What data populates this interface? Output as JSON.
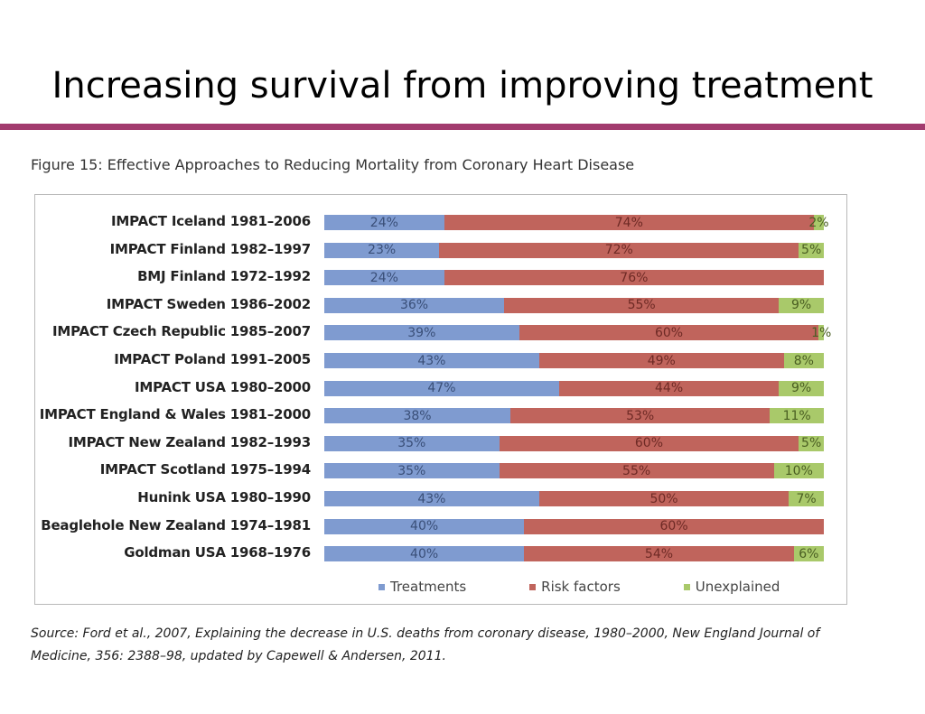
{
  "slide": {
    "title": "Increasing survival from improving treatment"
  },
  "colors": {
    "accent_rule": "#a23b6e",
    "treatments": "#7f9bd0",
    "risk_factors": "#c0645c",
    "unexplained": "#a9c96a"
  },
  "chart_data": {
    "type": "bar",
    "orientation": "horizontal",
    "stacked": true,
    "title": "Figure 15: Effective Approaches to Reducing Mortality from Coronary Heart Disease",
    "categories": [
      "IMPACT Iceland 1981–2006",
      "IMPACT Finland 1982–1997",
      "BMJ Finland 1972–1992",
      "IMPACT Sweden 1986–2002",
      "IMPACT Czech Republic 1985–2007",
      "IMPACT Poland 1991–2005",
      "IMPACT USA 1980–2000",
      "IMPACT England & Wales 1981–2000",
      "IMPACT New Zealand 1982–1993",
      "IMPACT Scotland 1975–1994",
      "Hunink USA 1980–1990",
      "Beaglehole New Zealand 1974–1981",
      "Goldman USA 1968–1976"
    ],
    "series": [
      {
        "name": "Treatments",
        "values": [
          24,
          23,
          24,
          36,
          39,
          43,
          47,
          38,
          35,
          35,
          43,
          40,
          40
        ],
        "labels": [
          "24%",
          "23%",
          "24%",
          "36%",
          "39%",
          "43%",
          "47%",
          "38%",
          "35%",
          "35%",
          "43%",
          "40%",
          "40%"
        ]
      },
      {
        "name": "Risk factors",
        "values": [
          74,
          72,
          76,
          55,
          60,
          49,
          44,
          53,
          60,
          55,
          50,
          60,
          54
        ],
        "labels": [
          "74%",
          "72%",
          "76%",
          "55%",
          "60%",
          "49%",
          "44%",
          "53%",
          "60%",
          "55%",
          "50%",
          "60%",
          "54%"
        ]
      },
      {
        "name": "Unexplained",
        "values": [
          2,
          5,
          0,
          9,
          1,
          8,
          9,
          11,
          5,
          10,
          7,
          0,
          6
        ],
        "labels": [
          "2%",
          "5%",
          "",
          "9%",
          "1%",
          "8%",
          "9%",
          "11%",
          "5%",
          "10%",
          "7%",
          "",
          "6%"
        ]
      }
    ],
    "legend_position": "bottom"
  },
  "source": {
    "text": "Source: Ford et al., 2007, Explaining the decrease in U.S. deaths from coronary disease, 1980–2000, New England Journal of Medicine, 356: 2388–98, updated by Capewell & Andersen, 2011."
  }
}
